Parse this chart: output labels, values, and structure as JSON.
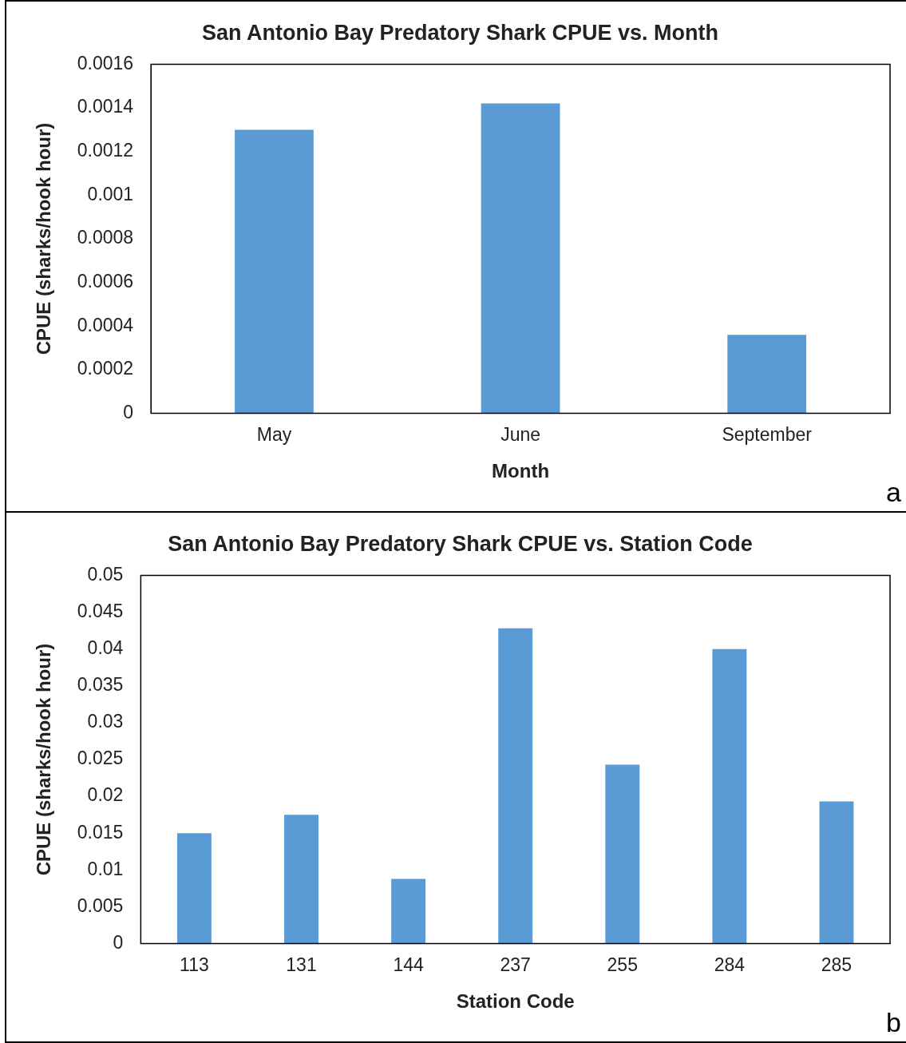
{
  "chart_data": [
    {
      "type": "bar",
      "title": "San Antonio Bay Predatory Shark CPUE vs. Month",
      "xlabel": "Month",
      "ylabel": "CPUE (sharks/hook hour)",
      "categories": [
        "May",
        "June",
        "September"
      ],
      "values": [
        0.0013,
        0.00142,
        0.00036
      ],
      "color": "#5b9bd5",
      "ylim": [
        0,
        0.0016
      ],
      "yticks": [
        0,
        0.0002,
        0.0004,
        0.0006,
        0.0008,
        0.001,
        0.0012,
        0.0014,
        0.0016
      ],
      "annotations": [
        "a"
      ]
    },
    {
      "type": "bar",
      "title": "San Antonio Bay Predatory Shark CPUE vs. Station Code",
      "xlabel": "Station Code",
      "ylabel": "CPUE (sharks/hook hour)",
      "categories": [
        "113",
        "131",
        "144",
        "237",
        "255",
        "284",
        "285"
      ],
      "values": [
        0.015,
        0.0175,
        0.0088,
        0.0428,
        0.0243,
        0.04,
        0.0193
      ],
      "color": "#5b9bd5",
      "ylim": [
        0,
        0.05
      ],
      "yticks": [
        0,
        0.005,
        0.01,
        0.015,
        0.02,
        0.025,
        0.03,
        0.035,
        0.04,
        0.045,
        0.05
      ],
      "annotations": [
        "b"
      ]
    }
  ]
}
